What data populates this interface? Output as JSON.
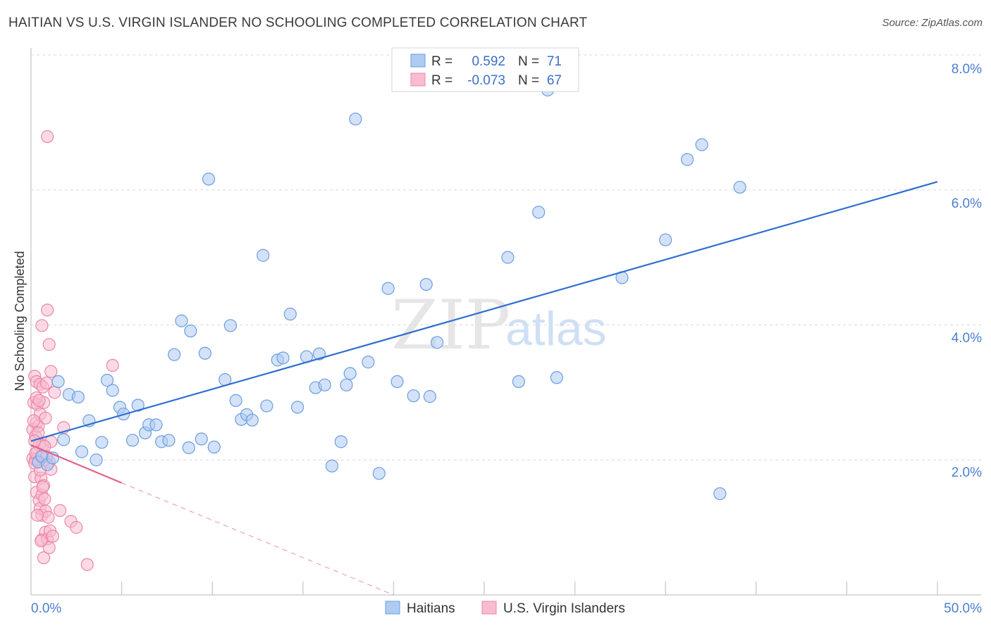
{
  "header": {
    "title": "HAITIAN VS U.S. VIRGIN ISLANDER NO SCHOOLING COMPLETED CORRELATION CHART",
    "source": "Source: ZipAtlas.com"
  },
  "watermark": {
    "part1": "ZIP",
    "part2": "atlas"
  },
  "colors": {
    "blue_fill": "#aecbf2",
    "blue_stroke": "#6b9ee0",
    "blue_line": "#2f6fd0",
    "pink_fill": "#f8bcd0",
    "pink_stroke": "#ec86a8",
    "pink_line": "#e0628d",
    "axis_tick": "#4a7fd0",
    "grid": "#d9d9d9"
  },
  "legend": {
    "rows": [
      {
        "r_label": "R =",
        "r_value": "0.592",
        "n_label": "N =",
        "n_value": "71"
      },
      {
        "r_label": "R =",
        "r_value": "-0.073",
        "n_label": "N =",
        "n_value": "67"
      }
    ]
  },
  "bottom_legend": {
    "series1": "Haitians",
    "series2": "U.S. Virgin Islanders"
  },
  "chart_data": {
    "type": "scatter",
    "title": "HAITIAN VS U.S. VIRGIN ISLANDER NO SCHOOLING COMPLETED CORRELATION CHART",
    "xlabel": "",
    "ylabel": "No Schooling Completed",
    "xlim": [
      0,
      50
    ],
    "ylim": [
      0,
      8.3
    ],
    "x_tick_labels": [
      "0.0%",
      "50.0%"
    ],
    "y_ticks": [
      2,
      4,
      6,
      8
    ],
    "y_tick_labels": [
      "2.0%",
      "4.0%",
      "6.0%",
      "8.0%"
    ],
    "series": [
      {
        "name": "Haitians",
        "r": 0.592,
        "n": 71,
        "trend": {
          "x0": 0,
          "y0": 2.28,
          "x1": 50,
          "y1": 6.12
        },
        "points": [
          [
            0.4,
            1.97
          ],
          [
            0.6,
            2.05
          ],
          [
            0.9,
            1.93
          ],
          [
            1.2,
            2.03
          ],
          [
            1.5,
            3.16
          ],
          [
            1.8,
            2.3
          ],
          [
            2.1,
            2.97
          ],
          [
            2.6,
            2.93
          ],
          [
            2.8,
            2.12
          ],
          [
            3.2,
            2.58
          ],
          [
            3.6,
            2.0
          ],
          [
            3.9,
            2.26
          ],
          [
            4.2,
            3.18
          ],
          [
            4.5,
            3.03
          ],
          [
            4.9,
            2.78
          ],
          [
            5.1,
            2.68
          ],
          [
            5.6,
            2.29
          ],
          [
            5.9,
            2.81
          ],
          [
            6.3,
            2.4
          ],
          [
            6.5,
            2.52
          ],
          [
            6.9,
            2.52
          ],
          [
            7.2,
            2.27
          ],
          [
            7.6,
            2.29
          ],
          [
            7.9,
            3.56
          ],
          [
            8.3,
            4.06
          ],
          [
            8.7,
            2.18
          ],
          [
            8.8,
            3.91
          ],
          [
            9.4,
            2.31
          ],
          [
            9.6,
            3.58
          ],
          [
            9.8,
            6.16
          ],
          [
            10.1,
            2.19
          ],
          [
            10.7,
            3.19
          ],
          [
            11.0,
            3.99
          ],
          [
            11.3,
            2.88
          ],
          [
            11.6,
            2.6
          ],
          [
            11.9,
            2.67
          ],
          [
            12.2,
            2.59
          ],
          [
            12.8,
            5.03
          ],
          [
            13.0,
            2.8
          ],
          [
            13.6,
            3.48
          ],
          [
            13.9,
            3.51
          ],
          [
            14.3,
            4.16
          ],
          [
            14.7,
            2.78
          ],
          [
            15.2,
            3.53
          ],
          [
            15.7,
            3.07
          ],
          [
            15.9,
            3.57
          ],
          [
            16.2,
            3.11
          ],
          [
            16.6,
            1.91
          ],
          [
            17.1,
            2.27
          ],
          [
            17.4,
            3.11
          ],
          [
            17.6,
            3.28
          ],
          [
            17.9,
            7.05
          ],
          [
            18.6,
            3.45
          ],
          [
            19.2,
            1.8
          ],
          [
            19.7,
            4.54
          ],
          [
            20.2,
            3.16
          ],
          [
            21.1,
            2.95
          ],
          [
            21.8,
            4.6
          ],
          [
            22.0,
            2.94
          ],
          [
            22.4,
            3.74
          ],
          [
            26.3,
            5.0
          ],
          [
            26.9,
            3.16
          ],
          [
            28.0,
            5.67
          ],
          [
            28.5,
            7.48
          ],
          [
            29.0,
            3.22
          ],
          [
            32.6,
            4.7
          ],
          [
            35.0,
            5.26
          ],
          [
            36.2,
            6.45
          ],
          [
            37.0,
            6.67
          ],
          [
            38.0,
            1.5
          ],
          [
            39.1,
            6.04
          ]
        ]
      },
      {
        "name": "U.S. Virgin Islanders",
        "r": -0.073,
        "n": 67,
        "trend_solid": {
          "x0": 0,
          "y0": 2.22,
          "x1": 5.0,
          "y1": 1.66
        },
        "trend_dashed": {
          "x0": 5.0,
          "y0": 1.66,
          "x1": 20.0,
          "y1": 0.0
        },
        "points": [
          [
            0.1,
            2.02
          ],
          [
            0.1,
            2.45
          ],
          [
            0.15,
            2.85
          ],
          [
            0.2,
            1.75
          ],
          [
            0.2,
            3.24
          ],
          [
            0.25,
            2.0
          ],
          [
            0.25,
            2.35
          ],
          [
            0.3,
            1.52
          ],
          [
            0.3,
            2.55
          ],
          [
            0.3,
            3.16
          ],
          [
            0.35,
            2.12
          ],
          [
            0.35,
            2.82
          ],
          [
            0.4,
            1.97
          ],
          [
            0.4,
            2.5
          ],
          [
            0.45,
            1.4
          ],
          [
            0.45,
            2.22
          ],
          [
            0.5,
            1.28
          ],
          [
            0.5,
            2.68
          ],
          [
            0.5,
            3.12
          ],
          [
            0.55,
            1.73
          ],
          [
            0.55,
            2.05
          ],
          [
            0.6,
            0.82
          ],
          [
            0.6,
            1.18
          ],
          [
            0.6,
            1.48
          ],
          [
            0.65,
            2.22
          ],
          [
            0.65,
            3.08
          ],
          [
            0.7,
            0.55
          ],
          [
            0.7,
            1.62
          ],
          [
            0.7,
            2.85
          ],
          [
            0.75,
            1.42
          ],
          [
            0.8,
            0.93
          ],
          [
            0.8,
            1.24
          ],
          [
            0.8,
            2.62
          ],
          [
            0.85,
            3.14
          ],
          [
            0.9,
            0.83
          ],
          [
            0.9,
            4.22
          ],
          [
            0.9,
            6.79
          ],
          [
            0.95,
            1.15
          ],
          [
            1.0,
            0.7
          ],
          [
            1.0,
            1.97
          ],
          [
            1.0,
            3.71
          ],
          [
            1.05,
            0.95
          ],
          [
            1.1,
            1.86
          ],
          [
            1.1,
            3.31
          ],
          [
            1.1,
            2.27
          ],
          [
            1.2,
            0.87
          ],
          [
            1.3,
            3.0
          ],
          [
            1.6,
            1.25
          ],
          [
            1.8,
            2.48
          ],
          [
            2.2,
            1.09
          ],
          [
            2.5,
            1.0
          ],
          [
            3.1,
            0.45
          ],
          [
            4.5,
            3.4
          ],
          [
            0.6,
            3.99
          ],
          [
            0.3,
            2.92
          ],
          [
            0.45,
            2.88
          ],
          [
            0.2,
            1.95
          ],
          [
            0.15,
            2.58
          ],
          [
            0.35,
            1.18
          ],
          [
            0.55,
            0.8
          ],
          [
            0.25,
            2.1
          ],
          [
            0.4,
            2.4
          ],
          [
            0.75,
            2.2
          ],
          [
            0.5,
            1.85
          ],
          [
            0.65,
            1.6
          ],
          [
            0.85,
            2.05
          ],
          [
            0.2,
            2.28
          ]
        ]
      }
    ]
  }
}
